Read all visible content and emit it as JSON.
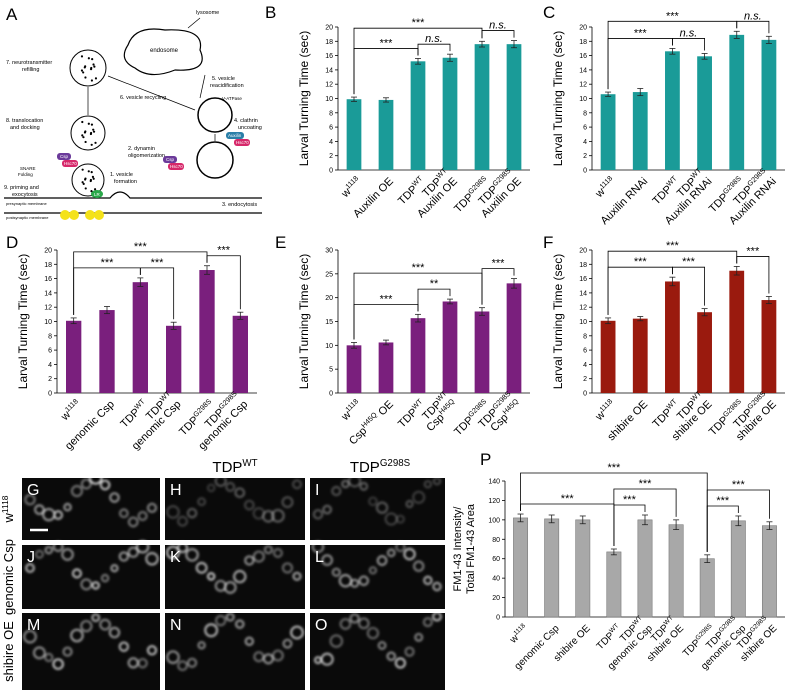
{
  "diagram": {
    "panel": "A",
    "labels": [
      "lysosome",
      "endosome",
      "5. vesicle",
      "reacidification",
      "V-ATPase",
      "7. neurotransmitter",
      "refilling",
      "6. vesicle recycling",
      "8. translocation",
      "and docking",
      "4. clathrin",
      "uncoating",
      "Auxilin",
      "Hsc70",
      "Csp",
      "Hsc70",
      "SNARE",
      "Folding",
      "2. dynamin",
      "oligomerization",
      "Csp",
      "Hsc70",
      "1. vesicle",
      "formation",
      "9. priming and",
      "exocytosis",
      "LR",
      "presynaptic membrane",
      "postsynaptic membrane",
      "3. endocytosis"
    ]
  },
  "chart_data": [
    {
      "type": "bar",
      "panel": "B",
      "y_label": "Larval Turning Time (sec)",
      "categories": [
        [
          [
            "w",
            "1118"
          ]
        ],
        [
          [
            "Auxilin OE"
          ]
        ],
        [
          [
            "TDP",
            "WT"
          ]
        ],
        [
          [
            "TDP",
            "WT"
          ],
          [
            "Auxilin OE"
          ]
        ],
        [
          [
            "TDP",
            "G298S"
          ]
        ],
        [
          [
            "TDP",
            "G298S"
          ],
          [
            "Auxilin OE"
          ]
        ]
      ],
      "series": [
        {
          "color": "#1a9b98",
          "values": [
            9.9,
            9.8,
            15.2,
            15.7,
            17.6,
            17.6
          ],
          "errors": [
            0.3,
            0.3,
            0.4,
            0.5,
            0.4,
            0.5
          ]
        }
      ],
      "ylim": [
        0,
        20
      ],
      "yticks": [
        0,
        2,
        4,
        6,
        8,
        10,
        12,
        14,
        16,
        18,
        20
      ],
      "significance": [
        {
          "between": [
            0,
            2
          ],
          "label": "***"
        },
        {
          "between": [
            0,
            4
          ],
          "label": "***"
        },
        {
          "between": [
            2,
            3
          ],
          "label": "n.s."
        },
        {
          "between": [
            4,
            5
          ],
          "label": "n.s."
        }
      ]
    },
    {
      "type": "bar",
      "panel": "C",
      "y_label": "Larval Turning Time (sec)",
      "categories": [
        [
          [
            "w",
            "1118"
          ]
        ],
        [
          [
            "Auxilin RNAi"
          ]
        ],
        [
          [
            "TDP",
            "WT"
          ]
        ],
        [
          [
            "TDP",
            "WT"
          ],
          [
            "Auxilin RNAi"
          ]
        ],
        [
          [
            "TDP",
            "G298S"
          ]
        ],
        [
          [
            "TDP",
            "G298S"
          ],
          [
            "Auxilin RNAi"
          ]
        ]
      ],
      "series": [
        {
          "color": "#1a9b98",
          "values": [
            10.6,
            10.9,
            16.6,
            15.9,
            18.9,
            18.2
          ],
          "errors": [
            0.3,
            0.5,
            0.4,
            0.4,
            0.5,
            0.5
          ]
        }
      ],
      "ylim": [
        0,
        20
      ],
      "yticks": [
        0,
        2,
        4,
        6,
        8,
        10,
        12,
        14,
        16,
        18,
        20
      ],
      "significance": [
        {
          "between": [
            0,
            2
          ],
          "label": "***"
        },
        {
          "between": [
            0,
            4
          ],
          "label": "***"
        },
        {
          "between": [
            2,
            3
          ],
          "label": "n.s."
        },
        {
          "between": [
            4,
            5
          ],
          "label": "n.s."
        }
      ]
    },
    {
      "type": "bar",
      "panel": "D",
      "y_label": "Larval Turning Time (sec)",
      "categories": [
        [
          [
            "w",
            "1118"
          ]
        ],
        [
          [
            "genomic Csp"
          ]
        ],
        [
          [
            "TDP",
            "WT"
          ]
        ],
        [
          [
            "TDP",
            "WT"
          ],
          [
            "genomic Csp"
          ]
        ],
        [
          [
            "TDP",
            "G298S"
          ]
        ],
        [
          [
            "TDP",
            "G298S"
          ],
          [
            "genomic Csp"
          ]
        ]
      ],
      "series": [
        {
          "color": "#7a1f7d",
          "values": [
            10.1,
            11.6,
            15.5,
            9.4,
            17.2,
            10.8
          ],
          "errors": [
            0.4,
            0.5,
            0.6,
            0.5,
            0.6,
            0.5
          ]
        }
      ],
      "ylim": [
        0,
        20
      ],
      "yticks": [
        0,
        2,
        4,
        6,
        8,
        10,
        12,
        14,
        16,
        18,
        20
      ],
      "significance": [
        {
          "between": [
            0,
            2
          ],
          "label": "***"
        },
        {
          "between": [
            0,
            4
          ],
          "label": "***"
        },
        {
          "between": [
            2,
            3
          ],
          "label": "***"
        },
        {
          "between": [
            4,
            5
          ],
          "label": "***"
        }
      ]
    },
    {
      "type": "bar",
      "panel": "E",
      "y_label": "Larval Turning Time (sec)",
      "categories": [
        [
          [
            "w",
            "1118"
          ]
        ],
        [
          [
            "Csp",
            "H45Q",
            " OE"
          ]
        ],
        [
          [
            "TDP",
            "WT"
          ]
        ],
        [
          [
            "TDP",
            "WT"
          ],
          [
            "Csp",
            "H45Q"
          ]
        ],
        [
          [
            "TDP",
            "G298S"
          ]
        ],
        [
          [
            "TDP",
            "G298S"
          ],
          [
            "Csp",
            "H45Q"
          ]
        ]
      ],
      "series": [
        {
          "color": "#7a1f7d",
          "values": [
            10.0,
            10.6,
            15.7,
            19.2,
            17.1,
            23.0
          ],
          "errors": [
            0.6,
            0.5,
            0.8,
            0.5,
            0.8,
            1.0
          ]
        }
      ],
      "ylim": [
        0,
        30
      ],
      "yticks": [
        0,
        5,
        10,
        15,
        20,
        25,
        30
      ],
      "significance": [
        {
          "between": [
            0,
            2
          ],
          "label": "***"
        },
        {
          "between": [
            0,
            4
          ],
          "label": "***"
        },
        {
          "between": [
            2,
            3
          ],
          "label": "**"
        },
        {
          "between": [
            4,
            5
          ],
          "label": "***"
        }
      ]
    },
    {
      "type": "bar",
      "panel": "F",
      "y_label": "Larval Turning Time (sec)",
      "categories": [
        [
          [
            "w",
            "1118"
          ]
        ],
        [
          [
            "shibire OE"
          ]
        ],
        [
          [
            "TDP",
            "WT"
          ]
        ],
        [
          [
            "TDP",
            "WT"
          ],
          [
            "shibire OE"
          ]
        ],
        [
          [
            "TDP",
            "G298S"
          ]
        ],
        [
          [
            "TDP",
            "G298S"
          ],
          [
            "shibire OE"
          ]
        ]
      ],
      "series": [
        {
          "color": "#9a1a0e",
          "values": [
            10.1,
            10.4,
            15.6,
            11.3,
            17.1,
            13.0
          ],
          "errors": [
            0.4,
            0.3,
            0.6,
            0.5,
            0.6,
            0.5
          ]
        }
      ],
      "ylim": [
        0,
        20
      ],
      "yticks": [
        0,
        2,
        4,
        6,
        8,
        10,
        12,
        14,
        16,
        18,
        20
      ],
      "significance": [
        {
          "between": [
            0,
            2
          ],
          "label": "***"
        },
        {
          "between": [
            0,
            4
          ],
          "label": "***"
        },
        {
          "between": [
            2,
            3
          ],
          "label": "***"
        },
        {
          "between": [
            4,
            5
          ],
          "label": "***"
        }
      ]
    },
    {
      "type": "bar",
      "panel": "P",
      "y_label": [
        "FM1-43 Intensity/",
        "Total FM1-43 Area"
      ],
      "categories": [
        [
          [
            "w",
            "1118"
          ]
        ],
        [
          [
            "genomic Csp"
          ]
        ],
        [
          [
            "shibire OE"
          ]
        ],
        [
          [
            "TDP",
            "WT"
          ]
        ],
        [
          [
            "TDP",
            "WT"
          ],
          [
            "genomic Csp"
          ]
        ],
        [
          [
            "TDP",
            "WT"
          ],
          [
            "shibire OE"
          ]
        ],
        [
          [
            "TDP",
            "G298S"
          ]
        ],
        [
          [
            "TDP",
            "G298S"
          ],
          [
            "genomic Csp"
          ]
        ],
        [
          [
            "TDP",
            "G298S"
          ],
          [
            "shibire OE"
          ]
        ]
      ],
      "series": [
        {
          "color": "#a8a8a8",
          "values": [
            102,
            101,
            100,
            67,
            100,
            95,
            60,
            99,
            94
          ],
          "errors": [
            4,
            4,
            4,
            3,
            5,
            5,
            4,
            5,
            4
          ]
        }
      ],
      "ylim": [
        0,
        140
      ],
      "yticks": [
        0,
        20,
        40,
        60,
        80,
        100,
        120,
        140
      ],
      "significance": [
        {
          "between": [
            0,
            3
          ],
          "label": "***"
        },
        {
          "between": [
            0,
            6
          ],
          "label": "***"
        },
        {
          "between": [
            3,
            4
          ],
          "label": "***"
        },
        {
          "between": [
            3,
            5
          ],
          "label": "***"
        },
        {
          "between": [
            6,
            7
          ],
          "label": "***"
        },
        {
          "between": [
            6,
            8
          ],
          "label": "***"
        }
      ]
    }
  ],
  "micrographs": {
    "columns": [
      [
        "TDP",
        "WT"
      ],
      [
        "TDP",
        "G298S"
      ]
    ],
    "rows": [
      [
        "w",
        "1118"
      ],
      [
        "genomic Csp"
      ],
      [
        "shibire OE"
      ]
    ],
    "panels": [
      "G",
      "H",
      "I",
      "J",
      "K",
      "L",
      "M",
      "N",
      "O"
    ]
  }
}
